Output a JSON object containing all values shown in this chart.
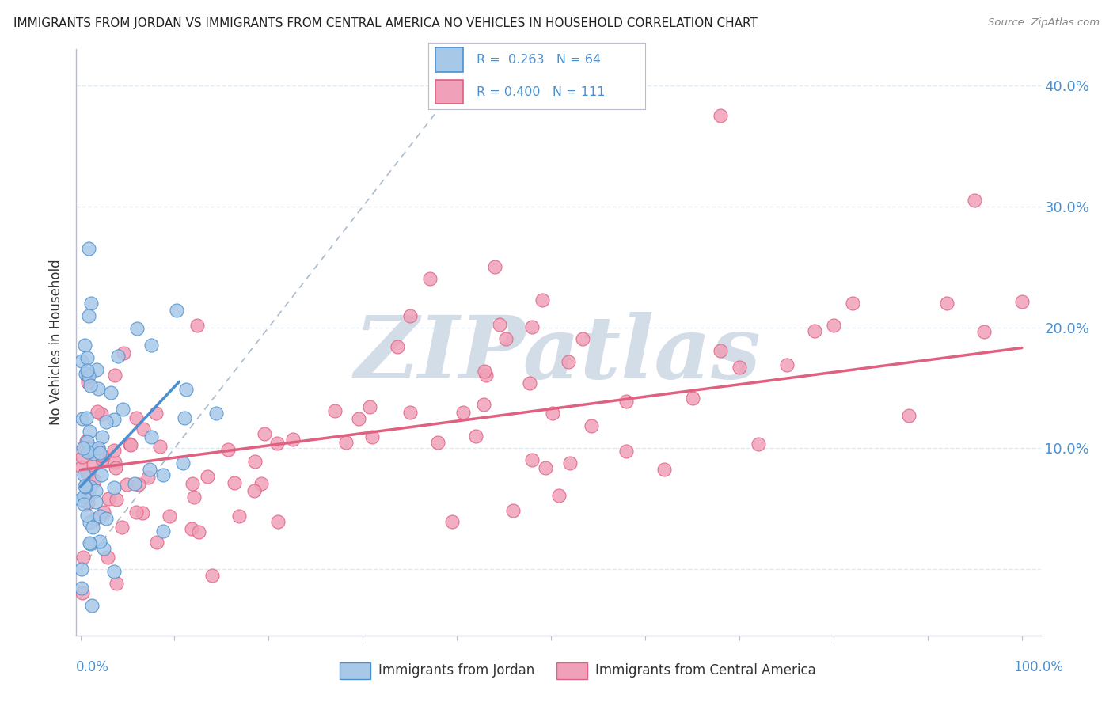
{
  "title": "IMMIGRANTS FROM JORDAN VS IMMIGRANTS FROM CENTRAL AMERICA NO VEHICLES IN HOUSEHOLD CORRELATION CHART",
  "source": "Source: ZipAtlas.com",
  "ylabel": "No Vehicles in Household",
  "ytick_vals": [
    0.0,
    0.1,
    0.2,
    0.3,
    0.4
  ],
  "ytick_labels": [
    "",
    "10.0%",
    "20.0%",
    "30.0%",
    "40.0%"
  ],
  "color_jordan": "#a8c8e8",
  "color_jordan_edge": "#4a90d0",
  "color_jordan_line": "#4a90d0",
  "color_central": "#f0a0b8",
  "color_central_edge": "#e06080",
  "color_central_line": "#e06080",
  "watermark_color": "#c8d8e8",
  "background_color": "#ffffff",
  "grid_color": "#e0e8f0"
}
